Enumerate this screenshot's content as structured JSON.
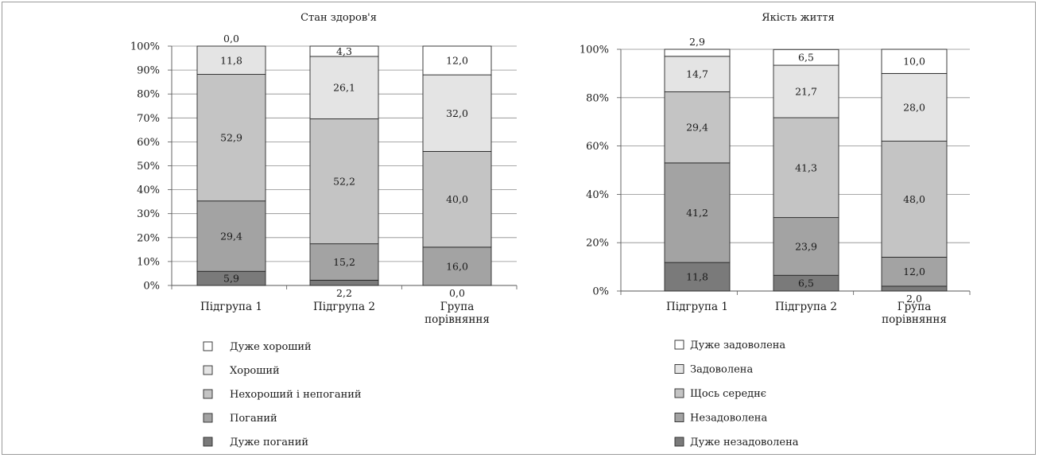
{
  "chart_data": [
    {
      "type": "bar",
      "stacked": true,
      "title": "Стан здоров'я",
      "categories": [
        [
          "Підгрупа 1"
        ],
        [
          "Підгрупа 2"
        ],
        [
          "Група",
          "порівняння"
        ]
      ],
      "ylim": [
        0,
        100
      ],
      "yticks": [
        0,
        10,
        20,
        30,
        40,
        50,
        60,
        70,
        80,
        90,
        100
      ],
      "ytick_labels": [
        "0%",
        "10%",
        "20%",
        "30%",
        "40%",
        "50%",
        "60%",
        "70%",
        "80%",
        "90%",
        "100%"
      ],
      "grid": true,
      "legend_position": "bottom-left",
      "series": [
        {
          "name": "Дуже поганий",
          "color": "#7a7a7a",
          "values": [
            5.9,
            2.2,
            0.0
          ],
          "labels": [
            "5,9",
            "2,2",
            "0,0"
          ]
        },
        {
          "name": "Поганий",
          "color": "#a3a3a3",
          "values": [
            29.4,
            15.2,
            16.0
          ],
          "labels": [
            "29,4",
            "15,2",
            "16,0"
          ]
        },
        {
          "name": "Нехороший і непоганий",
          "color": "#c4c4c4",
          "values": [
            52.9,
            52.2,
            40.0
          ],
          "labels": [
            "52,9",
            "52,2",
            "40,0"
          ]
        },
        {
          "name": "Хороший",
          "color": "#e4e4e4",
          "values": [
            11.8,
            26.1,
            32.0
          ],
          "labels": [
            "11,8",
            "26,1",
            "32,0"
          ]
        },
        {
          "name": "Дуже хороший",
          "color": "#ffffff",
          "values": [
            0.0,
            4.3,
            12.0
          ],
          "labels": [
            "0,0",
            "4,3",
            "12,0"
          ]
        }
      ]
    },
    {
      "type": "bar",
      "stacked": true,
      "title": "Якість життя",
      "categories": [
        [
          "Підгрупа 1"
        ],
        [
          "Підгрупа 2"
        ],
        [
          "Група",
          "порівняння"
        ]
      ],
      "ylim": [
        0,
        100
      ],
      "yticks": [
        0,
        20,
        40,
        60,
        80,
        100
      ],
      "ytick_labels": [
        "0%",
        "20%",
        "40%",
        "60%",
        "80%",
        "100%"
      ],
      "grid": true,
      "legend_position": "bottom-left",
      "series": [
        {
          "name": "Дуже незадоволена",
          "color": "#7a7a7a",
          "values": [
            11.8,
            6.5,
            2.0
          ],
          "labels": [
            "11,8",
            "6,5",
            "2,0"
          ]
        },
        {
          "name": "Незадоволена",
          "color": "#a3a3a3",
          "values": [
            41.2,
            23.9,
            12.0
          ],
          "labels": [
            "41,2",
            "23,9",
            "12,0"
          ]
        },
        {
          "name": "Щось середнє",
          "color": "#c4c4c4",
          "values": [
            29.4,
            41.3,
            48.0
          ],
          "labels": [
            "29,4",
            "41,3",
            "48,0"
          ]
        },
        {
          "name": "Задоволена",
          "color": "#e4e4e4",
          "values": [
            14.7,
            21.7,
            28.0
          ],
          "labels": [
            "14,7",
            "21,7",
            "28,0"
          ]
        },
        {
          "name": "Дуже задоволена",
          "color": "#ffffff",
          "values": [
            2.9,
            6.5,
            10.0
          ],
          "labels": [
            "2,9",
            "6,5",
            "10,0"
          ]
        }
      ]
    }
  ]
}
